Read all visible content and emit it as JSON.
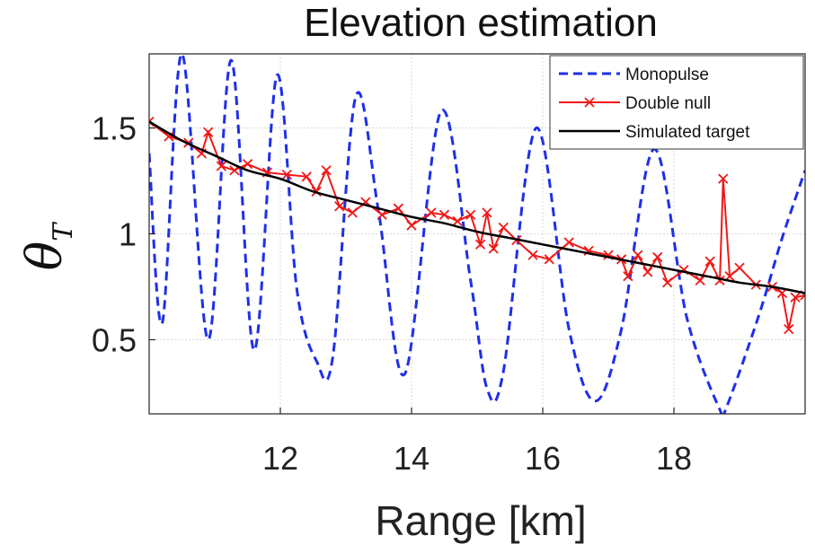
{
  "chart_data": {
    "type": "line",
    "title": "Elevation estimation",
    "xlabel": "Range [km]",
    "ylabel": {
      "main": "θ",
      "sub": "T"
    },
    "xlim": [
      10,
      20
    ],
    "ylim": [
      0.15,
      1.85
    ],
    "xticks": [
      12,
      14,
      16,
      18
    ],
    "xtick_labels": [
      "12",
      "14",
      "16",
      "18"
    ],
    "yticks": [
      0.5,
      1,
      1.5
    ],
    "ytick_labels": [
      "0.5",
      "1",
      "1.5"
    ],
    "grid": true,
    "legend_position": "top-right",
    "series": [
      {
        "name": "Monopulse",
        "color": "#1f2fe8",
        "style": "dashed",
        "x": [
          10.0,
          10.2,
          10.5,
          10.9,
          11.25,
          11.6,
          11.95,
          12.25,
          12.55,
          12.8,
          13.15,
          13.5,
          13.9,
          14.45,
          14.9,
          15.15,
          15.4,
          15.9,
          16.4,
          16.8,
          17.2,
          17.7,
          18.2,
          18.7,
          18.8,
          19.3,
          19.65,
          20.0
        ],
        "values": [
          1.38,
          0.58,
          1.85,
          0.5,
          1.82,
          0.45,
          1.75,
          0.74,
          0.4,
          0.42,
          1.65,
          1.1,
          0.34,
          1.58,
          0.78,
          0.27,
          0.35,
          1.5,
          0.55,
          0.21,
          0.55,
          1.4,
          0.6,
          0.17,
          0.18,
          0.62,
          0.98,
          1.3
        ]
      },
      {
        "name": "Double null",
        "color": "#f01818",
        "style": "solid-x-markers",
        "x": [
          10.0,
          10.3,
          10.6,
          10.8,
          10.9,
          11.1,
          11.3,
          11.5,
          11.8,
          12.1,
          12.4,
          12.55,
          12.7,
          12.9,
          13.1,
          13.3,
          13.55,
          13.8,
          14.0,
          14.3,
          14.5,
          14.7,
          14.9,
          15.05,
          15.15,
          15.25,
          15.4,
          15.6,
          15.85,
          16.1,
          16.4,
          16.7,
          17.0,
          17.2,
          17.3,
          17.45,
          17.6,
          17.75,
          17.9,
          18.15,
          18.4,
          18.55,
          18.7,
          18.75,
          18.85,
          19.0,
          19.25,
          19.5,
          19.65,
          19.75,
          19.85,
          20.0
        ],
        "values": [
          1.53,
          1.46,
          1.43,
          1.38,
          1.48,
          1.32,
          1.3,
          1.33,
          1.29,
          1.28,
          1.27,
          1.2,
          1.3,
          1.13,
          1.1,
          1.15,
          1.09,
          1.12,
          1.04,
          1.1,
          1.09,
          1.06,
          1.09,
          0.95,
          1.1,
          0.93,
          1.03,
          0.97,
          0.9,
          0.88,
          0.96,
          0.92,
          0.9,
          0.88,
          0.8,
          0.9,
          0.82,
          0.89,
          0.77,
          0.83,
          0.78,
          0.87,
          0.78,
          1.26,
          0.8,
          0.84,
          0.76,
          0.75,
          0.72,
          0.55,
          0.7,
          0.71
        ]
      },
      {
        "name": "Simulated target",
        "color": "#000000",
        "style": "solid",
        "x": [
          10.0,
          10.5,
          11.0,
          11.5,
          12.0,
          12.5,
          13.0,
          13.5,
          14.0,
          14.5,
          15.0,
          15.5,
          16.0,
          16.5,
          17.0,
          17.5,
          18.0,
          18.5,
          19.0,
          19.5,
          20.0
        ],
        "values": [
          1.53,
          1.44,
          1.37,
          1.3,
          1.26,
          1.2,
          1.16,
          1.12,
          1.08,
          1.05,
          1.01,
          0.98,
          0.95,
          0.92,
          0.89,
          0.86,
          0.83,
          0.8,
          0.77,
          0.75,
          0.72
        ]
      }
    ]
  }
}
